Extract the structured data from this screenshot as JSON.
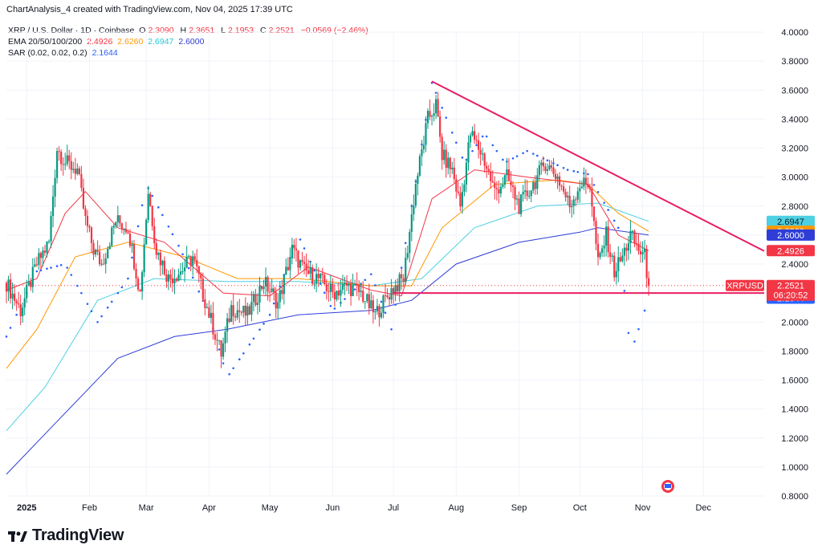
{
  "header": {
    "title": "ChartAnalysis_4 created with TradingView.com, Nov 04, 2025 17:39 UTC"
  },
  "legend": {
    "symbol": "XRP / U.S. Dollar · 1D · Coinbase",
    "ohlc": {
      "o_label": "O",
      "o": "2.3090",
      "h_label": "H",
      "h": "2.3651",
      "l_label": "L",
      "l": "2.1953",
      "c_label": "C",
      "c": "2.2521",
      "change": "−0.0569 (−2.46%)"
    },
    "ema_label": "EMA 20/50/100/200",
    "ema_values": [
      "2.4926",
      "2.6260",
      "2.6947",
      "2.6000"
    ],
    "sar_label": "SAR (0.02, 0.02, 0.2)",
    "sar_value": "2.1644"
  },
  "colors": {
    "up": "#089981",
    "down": "#f23645",
    "ema20": "#f23645",
    "ema50": "#ff9800",
    "ema100": "#4dd0e1",
    "ema200": "#2f3dd6",
    "sar": "#2962ff",
    "trendline": "#e91e63"
  },
  "price_tags": {
    "symbol": "XRPUSD",
    "ema100": "2.6947",
    "ema50": "2.6260",
    "ema200": "2.6000",
    "ema20": "2.4926",
    "last": "2.2521",
    "countdown": "06:20:52",
    "sar": "2.1644"
  },
  "footer": {
    "brand": "TradingView",
    "logo_icon": "tradingview-logo-icon"
  },
  "chart_data": {
    "type": "candlestick",
    "y_ticks": [
      "4.0000",
      "3.8000",
      "3.6000",
      "3.4000",
      "3.2000",
      "3.0000",
      "2.8000",
      "2.6000",
      "2.4000",
      "2.2000",
      "2.0000",
      "1.8000",
      "1.6000",
      "1.4000",
      "1.2000",
      "1.0000",
      "0.8000"
    ],
    "ylim": [
      0.8,
      4.0
    ],
    "x_ticks": [
      "2025",
      "Feb",
      "Mar",
      "Apr",
      "May",
      "Jun",
      "Jul",
      "Aug",
      "Sep",
      "Oct",
      "Nov",
      "Dec"
    ],
    "x_range": [
      "2024-12-22",
      "2025-12-31"
    ],
    "last_date": "2025-11-04",
    "price_series_close": [
      [
        "2024-12-22",
        2.27
      ],
      [
        "2024-12-29",
        2.08
      ],
      [
        "2025-01-06",
        2.4
      ],
      [
        "2025-01-12",
        2.55
      ],
      [
        "2025-01-16",
        3.2
      ],
      [
        "2025-01-20",
        3.1
      ],
      [
        "2025-01-26",
        3.05
      ],
      [
        "2025-01-30",
        2.7
      ],
      [
        "2025-02-03",
        2.5
      ],
      [
        "2025-02-07",
        2.4
      ],
      [
        "2025-02-14",
        2.7
      ],
      [
        "2025-02-20",
        2.65
      ],
      [
        "2025-02-26",
        2.2
      ],
      [
        "2025-03-02",
        2.9
      ],
      [
        "2025-03-06",
        2.5
      ],
      [
        "2025-03-12",
        2.3
      ],
      [
        "2025-03-18",
        2.35
      ],
      [
        "2025-03-24",
        2.45
      ],
      [
        "2025-03-30",
        2.15
      ],
      [
        "2025-04-07",
        1.78
      ],
      [
        "2025-04-12",
        2.1
      ],
      [
        "2025-04-20",
        2.05
      ],
      [
        "2025-04-28",
        2.28
      ],
      [
        "2025-05-05",
        2.13
      ],
      [
        "2025-05-12",
        2.5
      ],
      [
        "2025-05-18",
        2.35
      ],
      [
        "2025-05-25",
        2.3
      ],
      [
        "2025-06-01",
        2.2
      ],
      [
        "2025-06-08",
        2.25
      ],
      [
        "2025-06-15",
        2.2
      ],
      [
        "2025-06-22",
        2.05
      ],
      [
        "2025-06-30",
        2.22
      ],
      [
        "2025-07-06",
        2.3
      ],
      [
        "2025-07-12",
        2.95
      ],
      [
        "2025-07-18",
        3.4
      ],
      [
        "2025-07-22",
        3.5
      ],
      [
        "2025-07-25",
        3.15
      ],
      [
        "2025-07-30",
        3.05
      ],
      [
        "2025-08-03",
        2.8
      ],
      [
        "2025-08-08",
        3.3
      ],
      [
        "2025-08-14",
        3.15
      ],
      [
        "2025-08-20",
        2.9
      ],
      [
        "2025-08-26",
        3.0
      ],
      [
        "2025-09-01",
        2.8
      ],
      [
        "2025-09-08",
        2.95
      ],
      [
        "2025-09-14",
        3.1
      ],
      [
        "2025-09-20",
        3.0
      ],
      [
        "2025-09-26",
        2.8
      ],
      [
        "2025-10-01",
        2.95
      ],
      [
        "2025-10-06",
        2.95
      ],
      [
        "2025-10-10",
        2.4
      ],
      [
        "2025-10-14",
        2.6
      ],
      [
        "2025-10-18",
        2.35
      ],
      [
        "2025-10-22",
        2.45
      ],
      [
        "2025-10-26",
        2.6
      ],
      [
        "2025-10-30",
        2.5
      ],
      [
        "2025-11-02",
        2.45
      ],
      [
        "2025-11-04",
        2.2521
      ]
    ],
    "lines": {
      "ema20": [
        [
          "2024-12-22",
          2.22
        ],
        [
          "2025-01-06",
          2.3
        ],
        [
          "2025-01-20",
          2.75
        ],
        [
          "2025-01-30",
          2.9
        ],
        [
          "2025-02-15",
          2.65
        ],
        [
          "2025-03-10",
          2.55
        ],
        [
          "2025-04-08",
          2.2
        ],
        [
          "2025-05-01",
          2.18
        ],
        [
          "2025-05-20",
          2.38
        ],
        [
          "2025-06-20",
          2.22
        ],
        [
          "2025-07-05",
          2.18
        ],
        [
          "2025-07-20",
          2.85
        ],
        [
          "2025-08-10",
          3.05
        ],
        [
          "2025-09-05",
          3.0
        ],
        [
          "2025-10-05",
          2.95
        ],
        [
          "2025-10-20",
          2.6
        ],
        [
          "2025-11-04",
          2.4926
        ]
      ],
      "ema50": [
        [
          "2024-12-22",
          1.68
        ],
        [
          "2025-01-06",
          1.95
        ],
        [
          "2025-01-25",
          2.45
        ],
        [
          "2025-02-20",
          2.55
        ],
        [
          "2025-03-20",
          2.45
        ],
        [
          "2025-04-15",
          2.3
        ],
        [
          "2025-05-15",
          2.3
        ],
        [
          "2025-06-20",
          2.25
        ],
        [
          "2025-07-10",
          2.25
        ],
        [
          "2025-07-25",
          2.65
        ],
        [
          "2025-08-20",
          2.95
        ],
        [
          "2025-09-20",
          2.98
        ],
        [
          "2025-10-05",
          2.95
        ],
        [
          "2025-10-20",
          2.75
        ],
        [
          "2025-11-04",
          2.626
        ]
      ],
      "ema100": [
        [
          "2024-12-22",
          1.25
        ],
        [
          "2025-01-10",
          1.55
        ],
        [
          "2025-02-05",
          2.15
        ],
        [
          "2025-03-05",
          2.3
        ],
        [
          "2025-04-10",
          2.28
        ],
        [
          "2025-05-15",
          2.28
        ],
        [
          "2025-06-20",
          2.25
        ],
        [
          "2025-07-15",
          2.3
        ],
        [
          "2025-08-10",
          2.65
        ],
        [
          "2025-09-10",
          2.8
        ],
        [
          "2025-10-10",
          2.82
        ],
        [
          "2025-11-04",
          2.6947
        ]
      ],
      "ema200": [
        [
          "2024-12-22",
          0.95
        ],
        [
          "2025-01-15",
          1.3
        ],
        [
          "2025-02-15",
          1.75
        ],
        [
          "2025-03-15",
          1.9
        ],
        [
          "2025-04-10",
          1.95
        ],
        [
          "2025-05-15",
          2.05
        ],
        [
          "2025-06-20",
          2.08
        ],
        [
          "2025-07-10",
          2.15
        ],
        [
          "2025-08-01",
          2.4
        ],
        [
          "2025-09-01",
          2.55
        ],
        [
          "2025-10-01",
          2.62
        ],
        [
          "2025-10-10",
          2.65
        ],
        [
          "2025-11-04",
          2.6
        ]
      ],
      "sar": [
        [
          "2024-12-22",
          1.9
        ],
        [
          "2025-01-06",
          2.35
        ],
        [
          "2025-01-20",
          2.4
        ],
        [
          "2025-02-05",
          2.0
        ],
        [
          "2025-02-20",
          2.3
        ],
        [
          "2025-03-01",
          2.95
        ],
        [
          "2025-03-18",
          2.5
        ],
        [
          "2025-04-01",
          2.05
        ],
        [
          "2025-04-10",
          1.62
        ],
        [
          "2025-05-01",
          2.05
        ],
        [
          "2025-05-15",
          2.6
        ],
        [
          "2025-06-01",
          2.08
        ],
        [
          "2025-06-20",
          2.33
        ],
        [
          "2025-06-30",
          1.95
        ],
        [
          "2025-07-20",
          3.65
        ],
        [
          "2025-08-05",
          3.1
        ],
        [
          "2025-08-15",
          3.3
        ],
        [
          "2025-08-25",
          3.1
        ],
        [
          "2025-09-05",
          3.18
        ],
        [
          "2025-09-25",
          3.05
        ],
        [
          "2025-10-05",
          3.02
        ],
        [
          "2025-10-20",
          2.65
        ],
        [
          "2025-10-26",
          1.78
        ],
        [
          "2025-11-04",
          2.1644
        ]
      ]
    },
    "trendlines": [
      {
        "name": "descending-resistance",
        "from": [
          "2025-07-20",
          3.66
        ],
        "to": [
          "2025-12-31",
          2.49
        ]
      },
      {
        "name": "horizontal-support",
        "from": [
          "2025-07-01",
          2.2
        ],
        "to": [
          "2025-12-31",
          2.2
        ]
      }
    ]
  }
}
